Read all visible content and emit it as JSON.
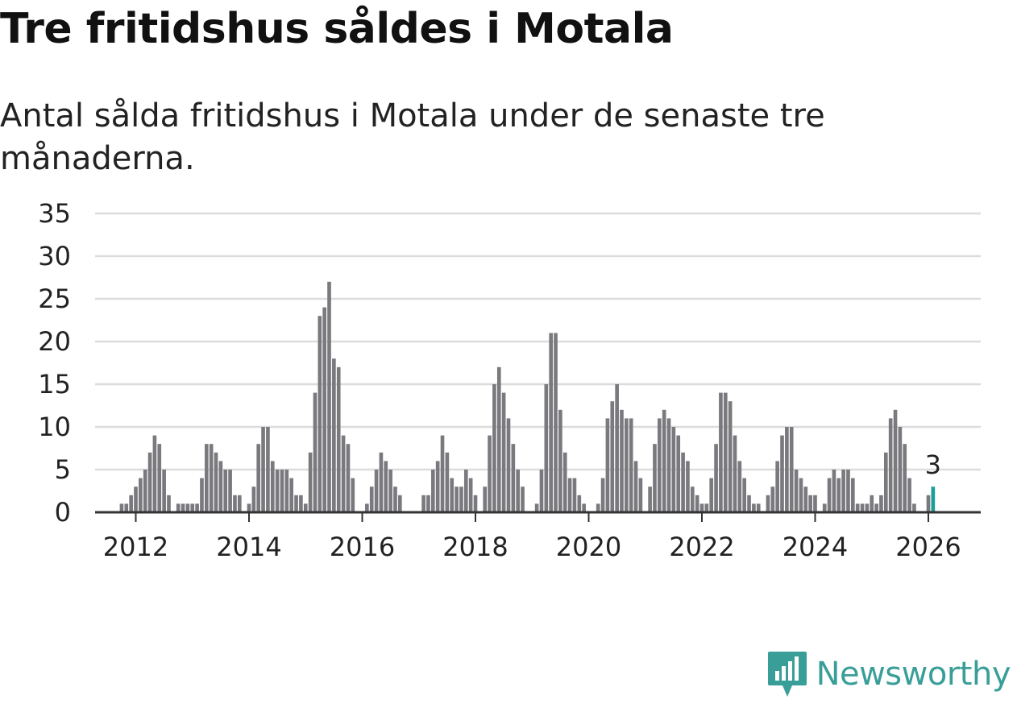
{
  "header": {
    "title": "Tre fritidshus såldes i Motala",
    "subtitle": "Antal sålda fritidshus i Motala under de senaste tre månaderna."
  },
  "branding": {
    "name": "Newsworthy",
    "color": "#3a9e98"
  },
  "colors": {
    "bar": "#7a797e",
    "highlight": "#1a9e98",
    "grid": "#dcdcdc",
    "axis": "#333333"
  },
  "chart_data": {
    "type": "bar",
    "title": "Tre fritidshus såldes i Motala",
    "xlabel": "",
    "ylabel": "",
    "ylim": [
      0,
      35
    ],
    "yticks": [
      0,
      5,
      10,
      15,
      20,
      25,
      30,
      35
    ],
    "x_tick_labels": [
      "2012",
      "2014",
      "2016",
      "2018",
      "2020",
      "2022",
      "2024",
      "2026"
    ],
    "start": "2011-01",
    "interval": "month",
    "highlight_label": "3",
    "values": [
      0,
      0,
      0,
      0,
      0,
      0,
      0,
      0,
      0,
      1,
      1,
      2,
      3,
      4,
      5,
      7,
      9,
      8,
      5,
      2,
      0,
      1,
      1,
      1,
      1,
      1,
      4,
      8,
      8,
      7,
      6,
      5,
      5,
      2,
      2,
      0,
      1,
      3,
      8,
      10,
      10,
      6,
      5,
      5,
      5,
      4,
      2,
      2,
      1,
      7,
      14,
      23,
      24,
      27,
      18,
      17,
      9,
      8,
      4,
      0,
      0,
      1,
      3,
      5,
      7,
      6,
      5,
      3,
      2,
      0,
      0,
      0,
      0,
      2,
      2,
      5,
      6,
      9,
      7,
      4,
      3,
      3,
      5,
      4,
      2,
      0,
      3,
      9,
      15,
      17,
      14,
      11,
      8,
      5,
      3,
      0,
      0,
      1,
      5,
      15,
      21,
      21,
      12,
      7,
      4,
      4,
      2,
      1,
      0,
      0,
      1,
      4,
      11,
      13,
      15,
      12,
      11,
      11,
      6,
      4,
      0,
      3,
      8,
      11,
      12,
      11,
      10,
      9,
      7,
      6,
      3,
      2,
      1,
      1,
      4,
      8,
      14,
      14,
      13,
      9,
      6,
      4,
      2,
      1,
      1,
      0,
      2,
      3,
      6,
      9,
      10,
      10,
      5,
      4,
      3,
      2,
      2,
      0,
      1,
      4,
      5,
      4,
      5,
      5,
      4,
      1,
      1,
      1,
      2,
      1,
      2,
      7,
      11,
      12,
      10,
      8,
      4,
      1,
      0,
      0,
      2,
      3
    ]
  }
}
